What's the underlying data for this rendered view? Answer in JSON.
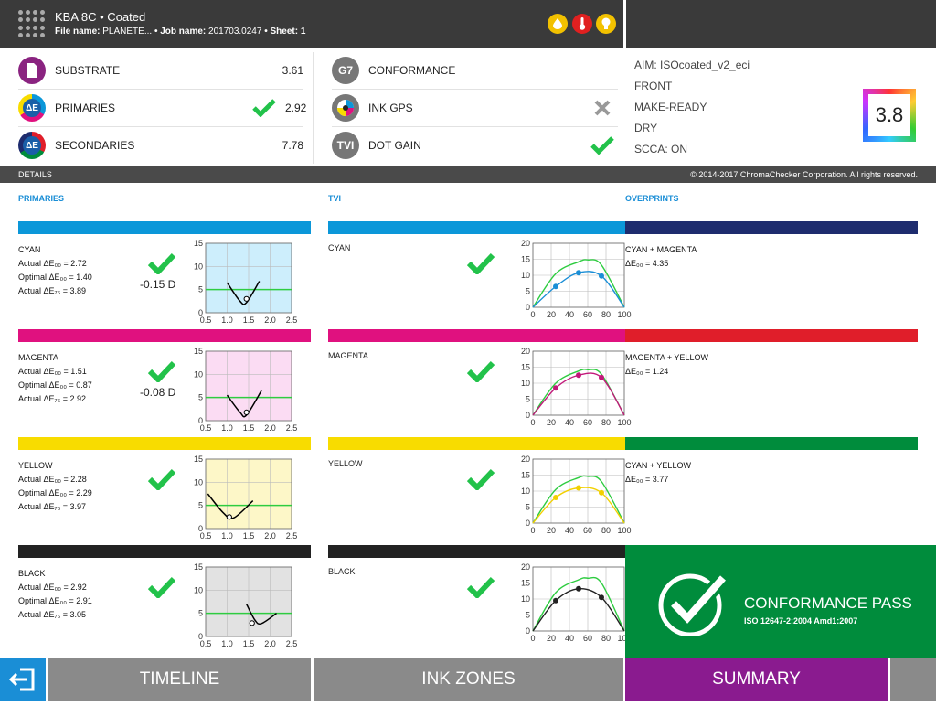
{
  "header": {
    "title": "KBA 8C • Coated",
    "file_label": "File name:",
    "file_name": "PLANETE...",
    "job_label": "• Job name:",
    "job_name": "201703.0247",
    "sheet": "• Sheet: 1",
    "status_icons": [
      "ink-drop-icon",
      "temperature-icon",
      "lightbulb-icon"
    ],
    "status_colors": [
      "#f2c100",
      "#e02020",
      "#f2c100"
    ]
  },
  "metrics_left": [
    {
      "icon": "substrate-icon",
      "label": "SUBSTRATE",
      "status": "",
      "value": "3.61"
    },
    {
      "icon": "delta-e-primaries-icon",
      "label": "PRIMARIES",
      "status": "pass",
      "value": "2.92"
    },
    {
      "icon": "delta-e-secondaries-icon",
      "label": "SECONDARIES",
      "status": "",
      "value": "7.78"
    }
  ],
  "metrics_mid": [
    {
      "icon_text": "G7",
      "label": "CONFORMANCE",
      "status": ""
    },
    {
      "icon_text": "",
      "label": "INK GPS",
      "status": "fail"
    },
    {
      "icon_text": "TVI",
      "label": "DOT GAIN",
      "status": "pass"
    }
  ],
  "aim": [
    "AIM: ISOcoated_v2_eci",
    "FRONT",
    "MAKE-READY",
    "DRY",
    "SCCA: ON"
  ],
  "score": "3.8",
  "details_bar": {
    "label": "DETAILS",
    "copyright": "© 2014-2017 ChromaChecker Corporation. All rights reserved."
  },
  "sections": {
    "primaries": "PRIMARIES",
    "tvi": "TVI",
    "overprints": "OVERPRINTS"
  },
  "primaries": [
    {
      "name": "CYAN",
      "color": "#0b97d9",
      "chart_bg": "#cdeefc",
      "actual00": "Actual ΔE₀₀ = 2.72",
      "optimal00": "Optimal ΔE₀₀ = 1.40",
      "actual76": "Actual ΔE₇₆ = 3.89",
      "density": "-0.15 D"
    },
    {
      "name": "MAGENTA",
      "color": "#e0117f",
      "chart_bg": "#fbdcf3",
      "actual00": "Actual ΔE₀₀ = 1.51",
      "optimal00": "Optimal ΔE₀₀ = 0.87",
      "actual76": "Actual ΔE₇₆ = 2.92",
      "density": "-0.08 D"
    },
    {
      "name": "YELLOW",
      "color": "#f8dc00",
      "chart_bg": "#fdf7c8",
      "actual00": "Actual ΔE₀₀ = 2.28",
      "optimal00": "Optimal ΔE₀₀ = 2.29",
      "actual76": "Actual ΔE₇₆ = 3.97",
      "density": ""
    },
    {
      "name": "BLACK",
      "color": "#222222",
      "chart_bg": "#e2e2e2",
      "actual00": "Actual ΔE₀₀ = 2.92",
      "optimal00": "Optimal ΔE₀₀ = 2.91",
      "actual76": "Actual ΔE₇₆ = 3.05",
      "density": ""
    }
  ],
  "tvi": [
    {
      "name": "CYAN",
      "color": "#0b97d9",
      "dot": "#1a8ed6"
    },
    {
      "name": "MAGENTA",
      "color": "#e0117f",
      "dot": "#c2187a"
    },
    {
      "name": "YELLOW",
      "color": "#f8dc00",
      "dot": "#f2d000"
    },
    {
      "name": "BLACK",
      "color": "#222222",
      "dot": "#222222"
    }
  ],
  "overprints": [
    {
      "name": "CYAN + MAGENTA",
      "value": "ΔE₀₀ = 4.35",
      "color": "#1e2c6e"
    },
    {
      "name": "MAGENTA + YELLOW",
      "value": "ΔE₀₀ = 1.24",
      "color": "#e01e2a"
    },
    {
      "name": "CYAN + YELLOW",
      "value": "ΔE₀₀ = 3.77",
      "color": "#008c3c"
    }
  ],
  "conformance": {
    "title": "CONFORMANCE PASS",
    "standard": "ISO 12647-2:2004 Amd1:2007"
  },
  "nav": {
    "timeline": "TIMELINE",
    "ink_zones": "INK ZONES",
    "summary": "SUMMARY"
  },
  "chart_data": [
    {
      "type": "line",
      "title": "",
      "xlim": [
        0.5,
        2.5
      ],
      "ylim": [
        0,
        15
      ],
      "xticks": [
        "0.5",
        "1.0",
        "1.5",
        "2.0",
        "2.5"
      ],
      "yticks": [
        "0",
        "5",
        "10",
        "15"
      ],
      "target": 5,
      "series": [
        {
          "values": [
            [
              1.0,
              6.5
            ],
            [
              1.3,
              2.5
            ],
            [
              1.45,
              2.2
            ],
            [
              1.75,
              6.8
            ]
          ]
        }
      ],
      "marker": [
        1.45,
        3.0
      ]
    },
    {
      "type": "line",
      "title": "",
      "xlim": [
        0.5,
        2.5
      ],
      "ylim": [
        0,
        15
      ],
      "xticks": [
        "0.5",
        "1.0",
        "1.5",
        "2.0",
        "2.5"
      ],
      "yticks": [
        "0",
        "5",
        "10",
        "15"
      ],
      "target": 5,
      "series": [
        {
          "values": [
            [
              1.0,
              5.5
            ],
            [
              1.3,
              1.8
            ],
            [
              1.45,
              1.2
            ],
            [
              1.8,
              6.5
            ]
          ]
        }
      ],
      "marker": [
        1.45,
        1.8
      ]
    },
    {
      "type": "line",
      "title": "",
      "xlim": [
        0.5,
        2.5
      ],
      "ylim": [
        0,
        15
      ],
      "xticks": [
        "0.5",
        "1.0",
        "1.5",
        "2.0",
        "2.5"
      ],
      "yticks": [
        "0",
        "5",
        "10",
        "15"
      ],
      "target": 5,
      "series": [
        {
          "values": [
            [
              0.55,
              7.5
            ],
            [
              0.9,
              3.5
            ],
            [
              1.15,
              2.3
            ],
            [
              1.6,
              6.0
            ]
          ]
        }
      ],
      "marker": [
        1.05,
        2.5
      ]
    },
    {
      "type": "line",
      "title": "",
      "xlim": [
        0.5,
        2.5
      ],
      "ylim": [
        0,
        15
      ],
      "xticks": [
        "0.5",
        "1.0",
        "1.5",
        "2.0",
        "2.5"
      ],
      "yticks": [
        "0",
        "5",
        "10",
        "15"
      ],
      "target": 5,
      "series": [
        {
          "values": [
            [
              1.45,
              7.0
            ],
            [
              1.65,
              3.5
            ],
            [
              1.8,
              2.8
            ],
            [
              2.15,
              5.0
            ]
          ]
        }
      ],
      "marker": [
        1.58,
        2.9
      ]
    },
    {
      "type": "line",
      "title": "",
      "xlim": [
        0,
        100
      ],
      "ylim": [
        0,
        20
      ],
      "xticks": [
        "0",
        "20",
        "40",
        "60",
        "80",
        "100"
      ],
      "yticks": [
        "0",
        "5",
        "10",
        "15",
        "20"
      ],
      "series": [
        {
          "name": "target",
          "values": [
            [
              0,
              0
            ],
            [
              25,
              10.5
            ],
            [
              50,
              14.2
            ],
            [
              60,
              14.8
            ],
            [
              75,
              13.2
            ],
            [
              100,
              0
            ]
          ]
        },
        {
          "name": "measured",
          "values": [
            [
              0,
              0
            ],
            [
              25,
              6.5
            ],
            [
              50,
              10.8
            ],
            [
              75,
              9.8
            ],
            [
              100,
              0
            ]
          ]
        }
      ]
    },
    {
      "type": "line",
      "title": "",
      "xlim": [
        0,
        100
      ],
      "ylim": [
        0,
        20
      ],
      "xticks": [
        "0",
        "20",
        "40",
        "60",
        "80",
        "100"
      ],
      "yticks": [
        "0",
        "5",
        "10",
        "15",
        "20"
      ],
      "series": [
        {
          "name": "target",
          "values": [
            [
              0,
              0
            ],
            [
              25,
              10
            ],
            [
              50,
              13.8
            ],
            [
              60,
              14.2
            ],
            [
              75,
              12.8
            ],
            [
              100,
              0
            ]
          ]
        },
        {
          "name": "measured",
          "values": [
            [
              0,
              0
            ],
            [
              25,
              8.5
            ],
            [
              50,
              12.5
            ],
            [
              75,
              11.8
            ],
            [
              100,
              0
            ]
          ]
        }
      ]
    },
    {
      "type": "line",
      "title": "",
      "xlim": [
        0,
        100
      ],
      "ylim": [
        0,
        20
      ],
      "xticks": [
        "0",
        "20",
        "40",
        "60",
        "80",
        "100"
      ],
      "yticks": [
        "0",
        "5",
        "10",
        "15",
        "20"
      ],
      "series": [
        {
          "name": "target",
          "values": [
            [
              0,
              0
            ],
            [
              25,
              10.5
            ],
            [
              50,
              14.2
            ],
            [
              60,
              14.6
            ],
            [
              75,
              13
            ],
            [
              100,
              0
            ]
          ]
        },
        {
          "name": "measured",
          "values": [
            [
              0,
              0
            ],
            [
              25,
              8
            ],
            [
              50,
              11
            ],
            [
              75,
              9.5
            ],
            [
              100,
              0
            ]
          ]
        }
      ]
    },
    {
      "type": "line",
      "title": "",
      "xlim": [
        0,
        100
      ],
      "ylim": [
        0,
        20
      ],
      "xticks": [
        "0",
        "20",
        "40",
        "60",
        "80",
        "100"
      ],
      "yticks": [
        "0",
        "5",
        "10",
        "15",
        "20"
      ],
      "series": [
        {
          "name": "target",
          "values": [
            [
              0,
              0
            ],
            [
              25,
              12
            ],
            [
              50,
              16
            ],
            [
              60,
              16.5
            ],
            [
              75,
              15
            ],
            [
              100,
              0
            ]
          ]
        },
        {
          "name": "measured",
          "values": [
            [
              0,
              0
            ],
            [
              25,
              9.5
            ],
            [
              50,
              13.2
            ],
            [
              75,
              10.5
            ],
            [
              100,
              0
            ]
          ]
        }
      ]
    }
  ]
}
